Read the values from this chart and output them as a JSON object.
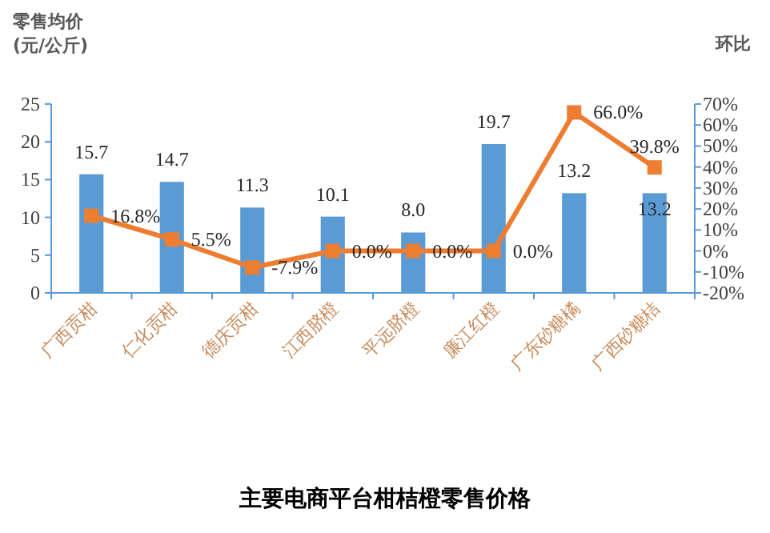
{
  "chart_data": {
    "type": "bar",
    "title": "主要电商平台柑桔橙零售价格",
    "ylabel": "零售均价 (元/公斤)",
    "y2label": "环比",
    "categories": [
      "广西贡柑",
      "仁化贡柑",
      "德庆贡柑",
      "江西脐橙",
      "平远脐橙",
      "廉江红橙",
      "广东砂糖橘",
      "广西砂糖桔"
    ],
    "series": [
      {
        "color": "#5b9bd5",
        "values": [
          15.7,
          14.7,
          11.3,
          10.1,
          8.0,
          19.7,
          13.2,
          13.2
        ],
        "value_labels": [
          "15.7",
          "14.7",
          "11.3",
          "10.1",
          "8.0",
          "19.7",
          "13.2",
          "13.2"
        ]
      },
      {
        "type": "line",
        "axis": "y2",
        "color": "#ed7d31",
        "marker": "square",
        "values": [
          16.8,
          5.5,
          -7.9,
          0.0,
          0.0,
          0.0,
          66.0,
          39.8
        ],
        "value_labels": [
          "16.8%",
          "5.5%",
          "-7.9%",
          "0.0%",
          "0.0%",
          "0.0%",
          "66.0%",
          "39.8%"
        ]
      }
    ],
    "ylim": [
      0,
      25
    ],
    "yticks": [
      0,
      5,
      10,
      15,
      20,
      25
    ],
    "y2lim": [
      -20,
      70
    ],
    "y2ticks": [
      {
        "value": -20,
        "label": "-20%"
      },
      {
        "value": -10,
        "label": "-10%"
      },
      {
        "value": 0,
        "label": "0%"
      },
      {
        "value": 10,
        "label": "10%"
      },
      {
        "value": 20,
        "label": "20%"
      },
      {
        "value": 30,
        "label": "30%"
      },
      {
        "value": 40,
        "label": "40%"
      },
      {
        "value": 50,
        "label": "50%"
      },
      {
        "value": 60,
        "label": "60%"
      },
      {
        "value": 70,
        "label": "70%"
      }
    ],
    "grid": false
  }
}
